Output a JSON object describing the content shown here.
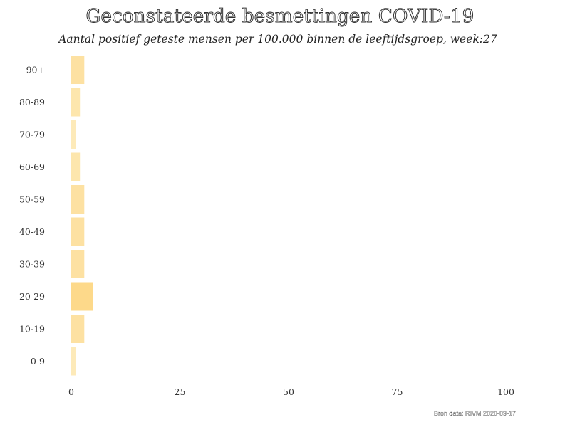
{
  "chart_data": {
    "type": "bar",
    "orientation": "horizontal",
    "title": "Geconstateerde besmettingen COVID-19",
    "subtitle": "Aantal positief geteste mensen per 100.000 binnen de leeftijdsgroep, week:27",
    "categories": [
      "90+",
      "80-89",
      "70-79",
      "60-69",
      "50-59",
      "40-49",
      "30-39",
      "20-29",
      "10-19",
      "0-9"
    ],
    "values": [
      3,
      2,
      1,
      2,
      3,
      3,
      3,
      5,
      3,
      1
    ],
    "xlim": [
      0,
      100
    ],
    "xticks": [
      "0",
      "25",
      "50",
      "75",
      "100"
    ],
    "xlabel": "",
    "ylabel": "",
    "grid": false,
    "legend": "none",
    "colors": {
      "bar_low": "#fdeec5",
      "bar_high": "#fdd98a",
      "text": "#333333"
    }
  },
  "source": "Bron data: RIVM 2020-09-17"
}
